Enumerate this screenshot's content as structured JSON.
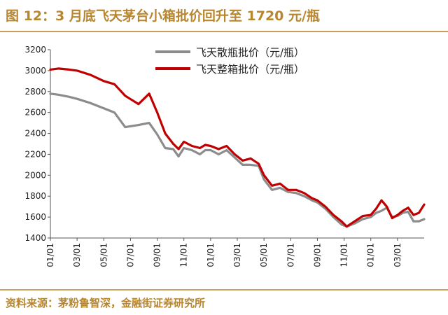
{
  "figure": {
    "title": "图 12：3 月底飞天茅台小箱批价回升至 1720 元/瓶",
    "source": "资料来源：茅粉鲁智深，金融街证券研究所"
  },
  "colors": {
    "accent": "#b8862e",
    "bulk_series": "#8c8c8c",
    "case_series": "#c00000"
  },
  "chart_data": {
    "type": "line",
    "title": "",
    "xlabel": "",
    "ylabel": "",
    "ylim": [
      1400,
      3200
    ],
    "yticks": [
      1400,
      1600,
      1800,
      2000,
      2200,
      2400,
      2600,
      2800,
      3000,
      3200
    ],
    "xticks": [
      "01/01",
      "03/01",
      "05/01",
      "07/01",
      "09/01",
      "11/01",
      "01/01",
      "03/01",
      "05/01",
      "07/01",
      "09/01",
      "11/01",
      "01/01",
      "03/01"
    ],
    "grid": false,
    "legend_position": "top-center",
    "series": [
      {
        "name": "飞天散瓶批价（元/瓶）",
        "color": "#8c8c8c",
        "x": [
          0,
          0.3,
          0.7,
          1.0,
          1.5,
          2.0,
          2.4,
          2.8,
          3.3,
          3.7,
          4.0,
          4.3,
          4.6,
          4.8,
          5.0,
          5.3,
          5.6,
          5.8,
          6.0,
          6.3,
          6.6,
          6.9,
          7.2,
          7.5,
          7.8,
          8.0,
          8.3,
          8.6,
          8.9,
          9.2,
          9.5,
          9.8,
          10.0,
          10.3,
          10.6,
          10.9,
          11.1,
          11.4,
          11.7,
          12.0,
          12.2,
          12.4,
          12.6,
          12.8,
          13.0,
          13.2,
          13.4,
          13.6,
          13.8,
          14.0
        ],
        "y": [
          2780,
          2770,
          2750,
          2730,
          2690,
          2640,
          2600,
          2460,
          2480,
          2500,
          2390,
          2260,
          2250,
          2180,
          2260,
          2240,
          2200,
          2240,
          2240,
          2200,
          2240,
          2170,
          2100,
          2100,
          2090,
          1960,
          1860,
          1880,
          1840,
          1830,
          1800,
          1760,
          1740,
          1680,
          1600,
          1530,
          1510,
          1540,
          1580,
          1600,
          1640,
          1660,
          1690,
          1600,
          1610,
          1640,
          1650,
          1560,
          1560,
          1580
        ]
      },
      {
        "name": "飞天整箱批价（元/瓶）",
        "color": "#c00000",
        "x": [
          0,
          0.3,
          0.7,
          1.0,
          1.5,
          2.0,
          2.4,
          2.8,
          3.3,
          3.7,
          4.0,
          4.3,
          4.6,
          4.8,
          5.0,
          5.3,
          5.6,
          5.8,
          6.0,
          6.3,
          6.6,
          6.9,
          7.2,
          7.5,
          7.8,
          8.0,
          8.3,
          8.6,
          8.9,
          9.2,
          9.5,
          9.8,
          10.0,
          10.3,
          10.6,
          10.9,
          11.1,
          11.4,
          11.7,
          12.0,
          12.2,
          12.4,
          12.6,
          12.8,
          13.0,
          13.2,
          13.4,
          13.6,
          13.8,
          14.0
        ],
        "y": [
          3010,
          3020,
          3010,
          3000,
          2960,
          2900,
          2870,
          2760,
          2680,
          2780,
          2600,
          2400,
          2300,
          2250,
          2320,
          2280,
          2260,
          2290,
          2280,
          2250,
          2280,
          2200,
          2140,
          2160,
          2110,
          2000,
          1900,
          1920,
          1860,
          1860,
          1830,
          1780,
          1760,
          1700,
          1620,
          1560,
          1510,
          1560,
          1610,
          1620,
          1680,
          1760,
          1700,
          1590,
          1620,
          1660,
          1690,
          1620,
          1640,
          1720
        ]
      }
    ]
  }
}
